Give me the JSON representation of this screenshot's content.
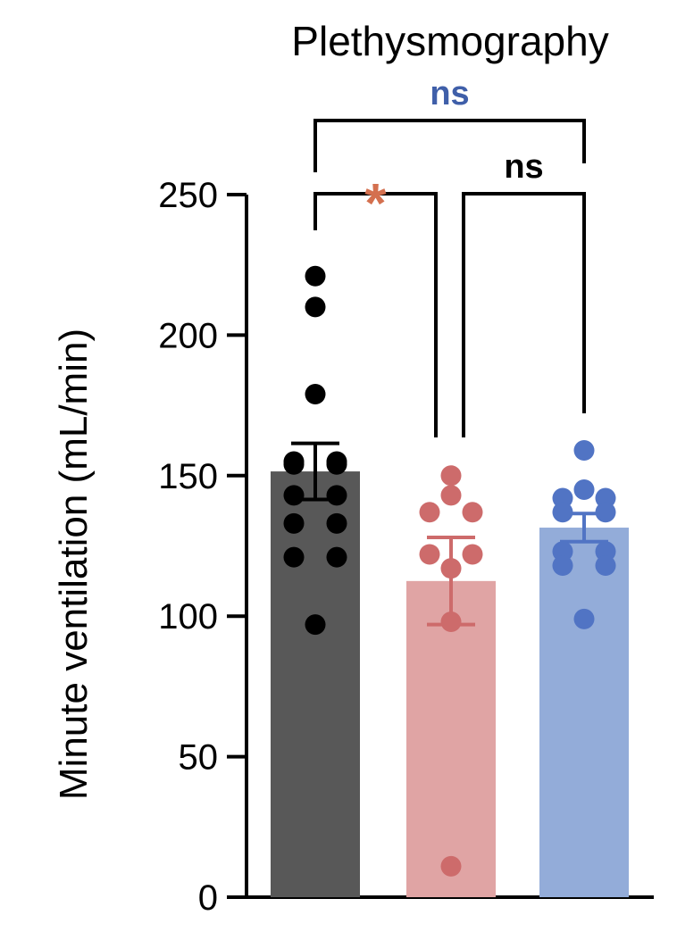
{
  "chart_data": {
    "type": "bar",
    "title": "Plethysmography",
    "ylabel": "Minute ventilation (mL/min)",
    "ylim": [
      0,
      250
    ],
    "yticks": [
      "0",
      "50",
      "100",
      "150",
      "200",
      "250"
    ],
    "series": [
      {
        "values": [
          151.5
        ],
        "sem": [
          10
        ],
        "points": [
          221,
          210,
          179,
          155,
          155,
          154,
          154,
          143,
          143,
          133,
          133,
          121,
          121,
          97
        ],
        "bar_color": "#585858",
        "point_color": "#000000"
      },
      {
        "values": [
          112.5
        ],
        "sem": [
          15.5
        ],
        "points": [
          150,
          143,
          137,
          137,
          122,
          122,
          117,
          98,
          11
        ],
        "bar_color": "#e0a4a4",
        "point_color": "#cd6b6b"
      },
      {
        "values": [
          131.5
        ],
        "sem": [
          5
        ],
        "points": [
          159,
          145,
          142,
          142,
          137,
          137,
          123,
          123,
          118,
          118,
          99
        ],
        "bar_color": "#93acd9",
        "point_color": "#5174c4"
      }
    ],
    "comparisons": [
      {
        "from": 0,
        "to": 2,
        "label": "ns",
        "color": "#3f5fa9",
        "level": 2
      },
      {
        "from": 0,
        "to": 1,
        "label": "*",
        "color": "#d4704f",
        "level": 1
      },
      {
        "from": 1,
        "to": 2,
        "label": "ns",
        "color": "#000000",
        "level": 1
      }
    ]
  }
}
